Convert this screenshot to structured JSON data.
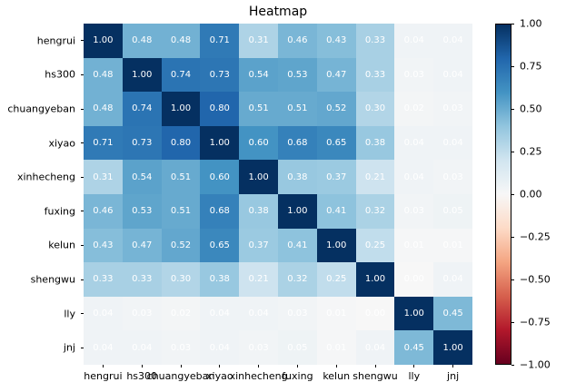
{
  "chart_data": {
    "type": "heatmap",
    "title": "Heatmap",
    "labels": [
      "hengrui",
      "hs300",
      "chuangyeban",
      "xiyao",
      "xinhecheng",
      "fuxing",
      "kelun",
      "shengwu",
      "lly",
      "jnj"
    ],
    "matrix": [
      [
        1.0,
        0.48,
        0.48,
        0.71,
        0.31,
        0.46,
        0.43,
        0.33,
        0.04,
        0.04
      ],
      [
        0.48,
        1.0,
        0.74,
        0.73,
        0.54,
        0.53,
        0.47,
        0.33,
        0.03,
        0.04
      ],
      [
        0.48,
        0.74,
        1.0,
        0.8,
        0.51,
        0.51,
        0.52,
        0.3,
        0.02,
        0.03
      ],
      [
        0.71,
        0.73,
        0.8,
        1.0,
        0.6,
        0.68,
        0.65,
        0.38,
        0.04,
        0.04
      ],
      [
        0.31,
        0.54,
        0.51,
        0.6,
        1.0,
        0.38,
        0.37,
        0.21,
        0.04,
        0.03
      ],
      [
        0.46,
        0.53,
        0.51,
        0.68,
        0.38,
        1.0,
        0.41,
        0.32,
        0.03,
        0.05
      ],
      [
        0.43,
        0.47,
        0.52,
        0.65,
        0.37,
        0.41,
        1.0,
        0.25,
        0.01,
        0.01
      ],
      [
        0.33,
        0.33,
        0.3,
        0.38,
        0.21,
        0.32,
        0.25,
        1.0,
        0.0,
        0.04
      ],
      [
        0.04,
        0.03,
        0.02,
        0.04,
        0.04,
        0.03,
        0.01,
        0.0,
        1.0,
        0.45
      ],
      [
        0.04,
        0.04,
        0.03,
        0.04,
        0.03,
        0.05,
        0.01,
        0.04,
        0.45,
        1.0
      ]
    ],
    "vmin": -1.0,
    "vmax": 1.0,
    "colormap": "RdBu",
    "annotation_color": "#ffffff",
    "annotation_decimals": 2,
    "colorbar_tick_labels": [
      "1.00",
      "0.75",
      "0.50",
      "0.25",
      "0.00",
      "−0.25",
      "−0.50",
      "−0.75",
      "−1.00"
    ],
    "colorbar_tick_values": [
      1.0,
      0.75,
      0.5,
      0.25,
      0.0,
      -0.25,
      -0.5,
      -0.75,
      -1.0
    ],
    "colors": {
      "positive_end": "#053061",
      "midpoint": "#f7f7f7",
      "negative_end": "#67001f",
      "background": "#ffffff"
    },
    "legend_position": "right-colorbar",
    "grid": false
  }
}
